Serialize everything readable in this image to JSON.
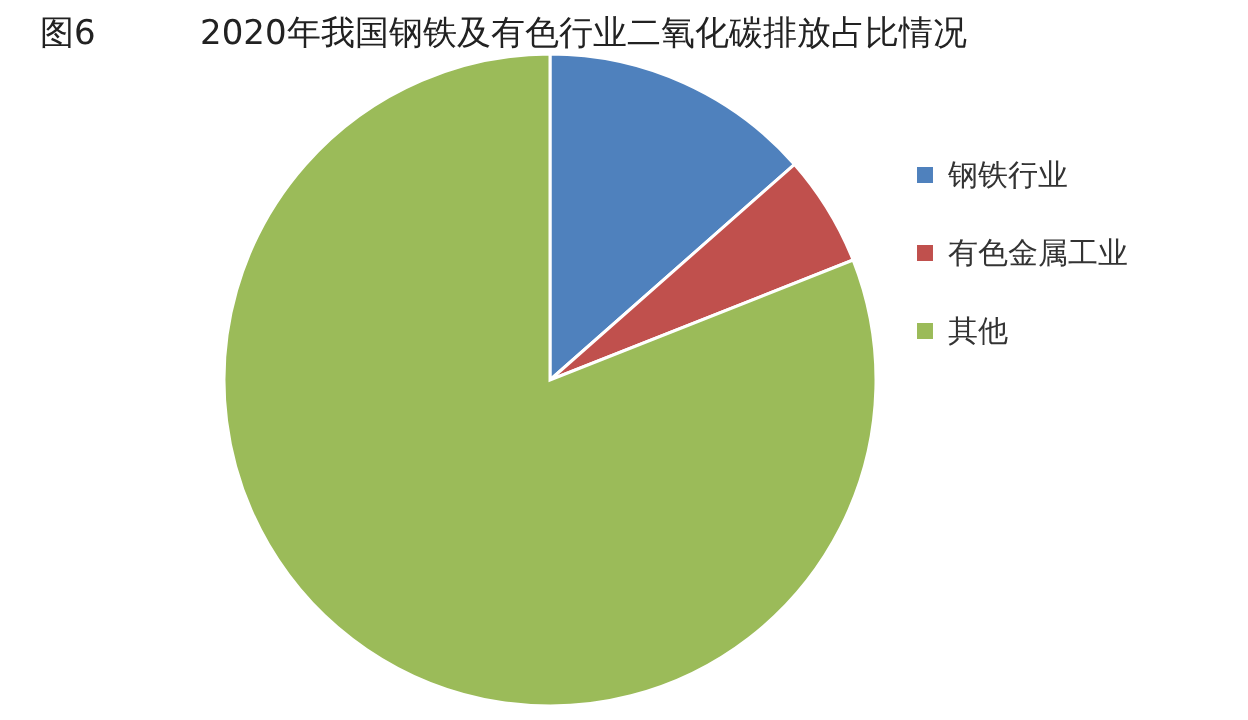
{
  "chart_data": {
    "type": "pie",
    "title": "2020年我国钢铁及有色行业二氧化碳排放占比情况",
    "annotations": [
      "图6"
    ],
    "categories": [
      "钢铁行业",
      "有色金属工业",
      "其他"
    ],
    "values": [
      13.5,
      5.5,
      81
    ],
    "colors": [
      "#4f81bd",
      "#c0504d",
      "#9bbb59"
    ],
    "legend": "right"
  }
}
